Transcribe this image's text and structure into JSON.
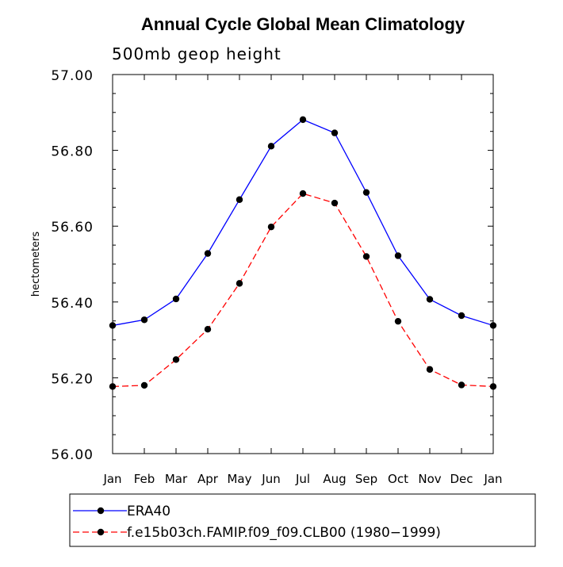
{
  "chart_data": {
    "type": "line",
    "title": "Annual Cycle Global Mean Climatology",
    "subtitle": "500mb geop height",
    "ylabel": "hectometers",
    "xlabel": "",
    "categories": [
      "Jan",
      "Feb",
      "Mar",
      "Apr",
      "May",
      "Jun",
      "Jul",
      "Aug",
      "Sep",
      "Oct",
      "Nov",
      "Dec",
      "Jan"
    ],
    "ylim": [
      56.0,
      57.0
    ],
    "yticks": [
      "56.00",
      "56.20",
      "56.40",
      "56.60",
      "56.80",
      "57.00"
    ],
    "grid": false,
    "legend_position": "bottom",
    "series": [
      {
        "name": "ERA40",
        "color": "#0000ff",
        "line_style": "solid",
        "values": [
          56.338,
          56.353,
          56.408,
          56.528,
          56.67,
          56.811,
          56.881,
          56.846,
          56.689,
          56.522,
          56.407,
          56.364,
          56.338
        ]
      },
      {
        "name": "f.e15b03ch.FAMIP.f09_f09.CLB00 (1980−1999)",
        "color": "#ff0000",
        "line_style": "dashed",
        "values": [
          56.177,
          56.18,
          56.248,
          56.328,
          56.449,
          56.598,
          56.686,
          56.661,
          56.52,
          56.349,
          56.222,
          56.181,
          56.177
        ]
      }
    ]
  }
}
